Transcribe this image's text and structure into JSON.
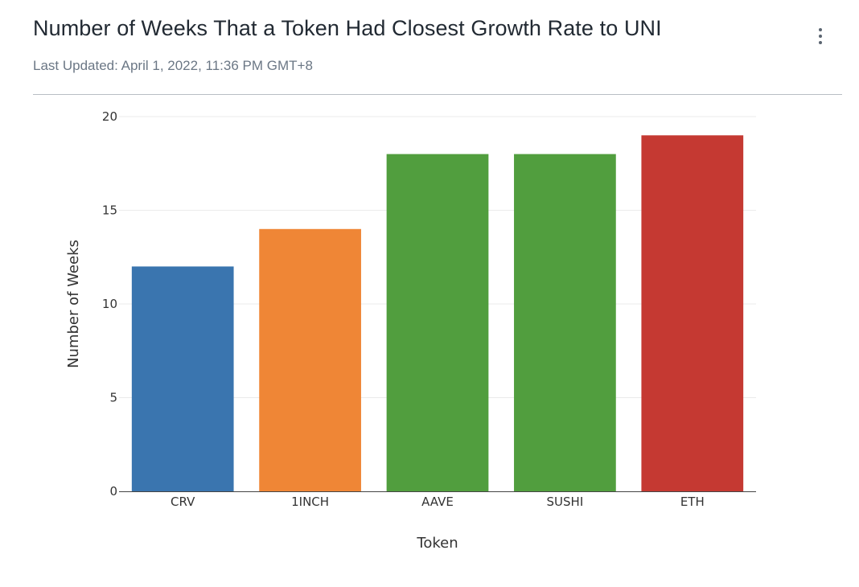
{
  "header": {
    "title": "Number of Weeks That a Token Had Closest Growth Rate to UNI",
    "subtitle": "Last Updated: April 1, 2022, 11:36 PM GMT+8",
    "menu_icon": "more-vertical-icon"
  },
  "chart_data": {
    "type": "bar",
    "categories": [
      "CRV",
      "1INCH",
      "AAVE",
      "SUSHI",
      "ETH"
    ],
    "values": [
      12,
      14,
      18,
      18,
      19
    ],
    "colors": [
      "#3a75af",
      "#ef8636",
      "#519e3e",
      "#519e3e",
      "#c53932"
    ],
    "xlabel": "Token",
    "ylabel": "Number of Weeks",
    "ylim": [
      0,
      20
    ],
    "yticks": [
      0,
      5,
      10,
      15,
      20
    ],
    "grid": true,
    "legend": "none"
  }
}
